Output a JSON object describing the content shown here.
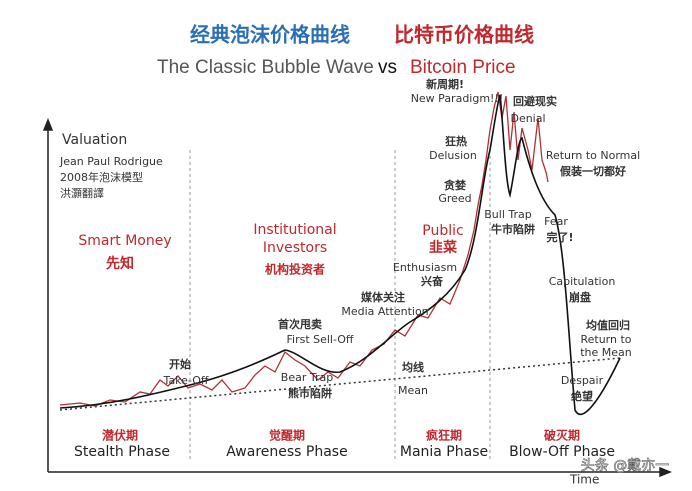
{
  "header": {
    "title_left": "经典泡沫价格曲线",
    "title_right": "比特币价格曲线",
    "subtitle_left": "The Classic Bubble Wave",
    "subtitle_vs": "vs",
    "subtitle_right": "Bitcoin Price"
  },
  "axes": {
    "y_label": "Valuation",
    "x_label": "Time"
  },
  "source": [
    "Jean Paul Rodrigue",
    "2008年泡沫模型",
    "洪灝翻譯"
  ],
  "investors": [
    {
      "lines": [
        "Smart Money"
      ],
      "cn": "先知"
    },
    {
      "lines": [
        "Institutional",
        "Investors"
      ],
      "cn": "机构投资者"
    },
    {
      "lines": [
        "Public"
      ],
      "cn": "韭菜"
    }
  ],
  "annotations": [
    {
      "cn": "开始",
      "en": [
        "Take-Off"
      ]
    },
    {
      "cn": "首次甩卖",
      "en": [
        "First Sell-Off"
      ]
    },
    {
      "cn": "熊市陷阱",
      "en": [
        "Bear Trap"
      ]
    },
    {
      "cn": "媒体关注",
      "en": [
        "Media Attention"
      ]
    },
    {
      "cn": "兴奋",
      "en": [
        "Enthusiasm"
      ]
    },
    {
      "cn": "贪婪",
      "en": [
        "Greed"
      ]
    },
    {
      "cn": "狂热",
      "en": [
        "Delusion"
      ]
    },
    {
      "cn": "新周期!",
      "en": [
        "New Paradigm!!!"
      ]
    },
    {
      "cn": "回避现实",
      "en": [
        "Denial"
      ]
    },
    {
      "cn": "假装一切都好",
      "en": [
        "Return to Normal"
      ]
    },
    {
      "cn": "牛市陷阱",
      "en": [
        "Bull Trap"
      ]
    },
    {
      "cn": "完了!",
      "en": [
        "Fear"
      ]
    },
    {
      "cn": "崩盘",
      "en": [
        "Capitulation"
      ]
    },
    {
      "cn": "均值回归",
      "en": [
        "Return to",
        "the Mean"
      ]
    },
    {
      "cn": "绝望",
      "en": [
        "Despair"
      ]
    },
    {
      "cn": "均线",
      "en": [
        "Mean"
      ]
    }
  ],
  "phases": [
    {
      "cn": "潜伏期",
      "en": "Stealth Phase"
    },
    {
      "cn": "觉醒期",
      "en": "Awareness Phase"
    },
    {
      "cn": "疯狂期",
      "en": "Mania Phase"
    },
    {
      "cn": "破灭期",
      "en": "Blow-Off Phase"
    }
  ],
  "watermark": "头条 @戴亦一"
}
